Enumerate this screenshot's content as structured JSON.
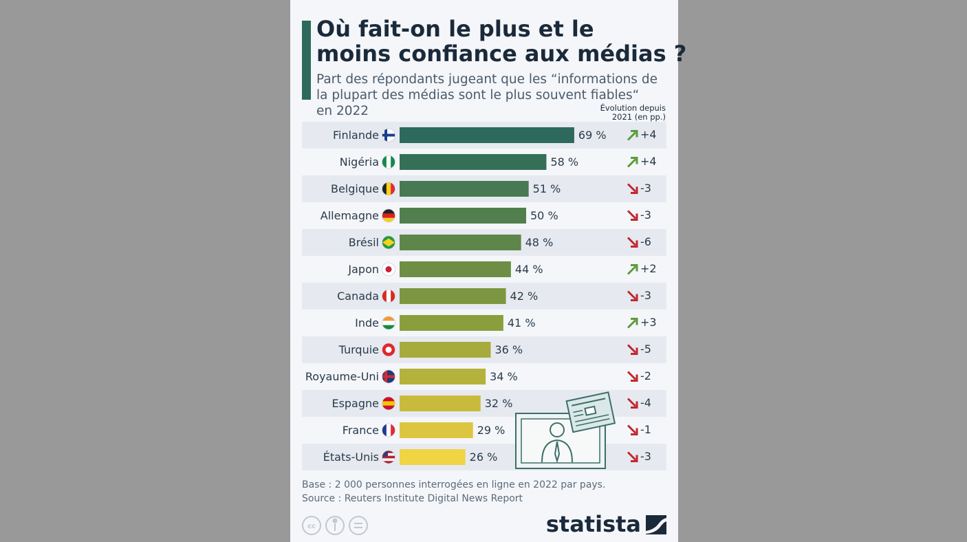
{
  "chart_data": {
    "type": "bar",
    "title": "Où fait-on le plus et le moins confiance aux médias ?",
    "subtitle": "Part des répondants jugeant que les “informations de la plupart des médias sont le plus souvent fiables“ en 2022",
    "change_header": "Évolution depuis 2021 (en pp.)",
    "categories": [
      "Finlande",
      "Nigéria",
      "Belgique",
      "Allemagne",
      "Brésil",
      "Japon",
      "Canada",
      "Inde",
      "Turquie",
      "Royaume-Uni",
      "Espagne",
      "France",
      "États-Unis"
    ],
    "values": [
      69,
      58,
      51,
      50,
      48,
      44,
      42,
      41,
      36,
      34,
      32,
      29,
      26
    ],
    "value_labels": [
      "69 %",
      "58 %",
      "51 %",
      "50 %",
      "48 %",
      "44 %",
      "42 %",
      "41 %",
      "36 %",
      "34 %",
      "32 %",
      "29 %",
      "26 %"
    ],
    "colors": [
      "#2d6a5c",
      "#356f58",
      "#477a52",
      "#527f4e",
      "#5f864a",
      "#6e8e45",
      "#7d9641",
      "#8b9e3e",
      "#a6ab3c",
      "#b5b23b",
      "#c8bb3c",
      "#dcc63f",
      "#f0d444"
    ],
    "changes": [
      4,
      4,
      -3,
      -3,
      -6,
      2,
      -3,
      3,
      -5,
      -2,
      -4,
      -1,
      -3
    ],
    "change_labels": [
      "+4",
      "+4",
      "-3",
      "-3",
      "-6",
      "+2",
      "-3",
      "+3",
      "-5",
      "-2",
      "-4",
      "-1",
      "-3"
    ],
    "notes": [
      "Base : 2 000 personnes interrogées en ligne en 2022 par pays.",
      "Source : Reuters Institute Digital News Report"
    ],
    "brand": "statista"
  }
}
